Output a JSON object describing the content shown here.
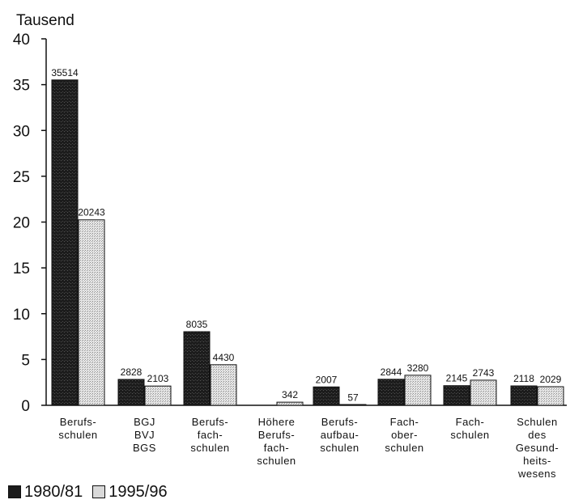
{
  "chart_data": {
    "type": "bar",
    "ylabel": "Tausend",
    "ylim": [
      0,
      40
    ],
    "yticks": [
      0,
      5,
      10,
      15,
      20,
      25,
      30,
      35,
      40
    ],
    "grid": false,
    "legend_placement": "bottom-left",
    "categories": [
      [
        "Berufs-",
        "schulen"
      ],
      [
        "BGJ",
        "BVJ",
        "BGS"
      ],
      [
        "Berufs-",
        "fach-",
        "schulen"
      ],
      [
        "Höhere",
        "Berufs-",
        "fach-",
        "schulen"
      ],
      [
        "Berufs-",
        "aufbau-",
        "schulen"
      ],
      [
        "Fach-",
        "ober-",
        "schulen"
      ],
      [
        "Fach-",
        "schulen"
      ],
      [
        "Schulen",
        "des",
        "Gesund-",
        "heits-",
        "wesens"
      ]
    ],
    "series": [
      {
        "name": "1980/81",
        "color": "#1c1c1c",
        "values": [
          35514,
          2828,
          8035,
          null,
          2007,
          2844,
          2145,
          2118
        ],
        "labels": [
          "35514",
          "2828",
          "8035",
          "",
          "2007",
          "2844",
          "2145",
          "2118"
        ]
      },
      {
        "name": "1995/96",
        "color": "#d9d9d9",
        "values": [
          20243,
          2103,
          4430,
          342,
          57,
          3280,
          2743,
          2029
        ],
        "labels": [
          "20243",
          "2103",
          "4430",
          "342",
          "57",
          "3280",
          "2743",
          "2029"
        ]
      }
    ]
  }
}
